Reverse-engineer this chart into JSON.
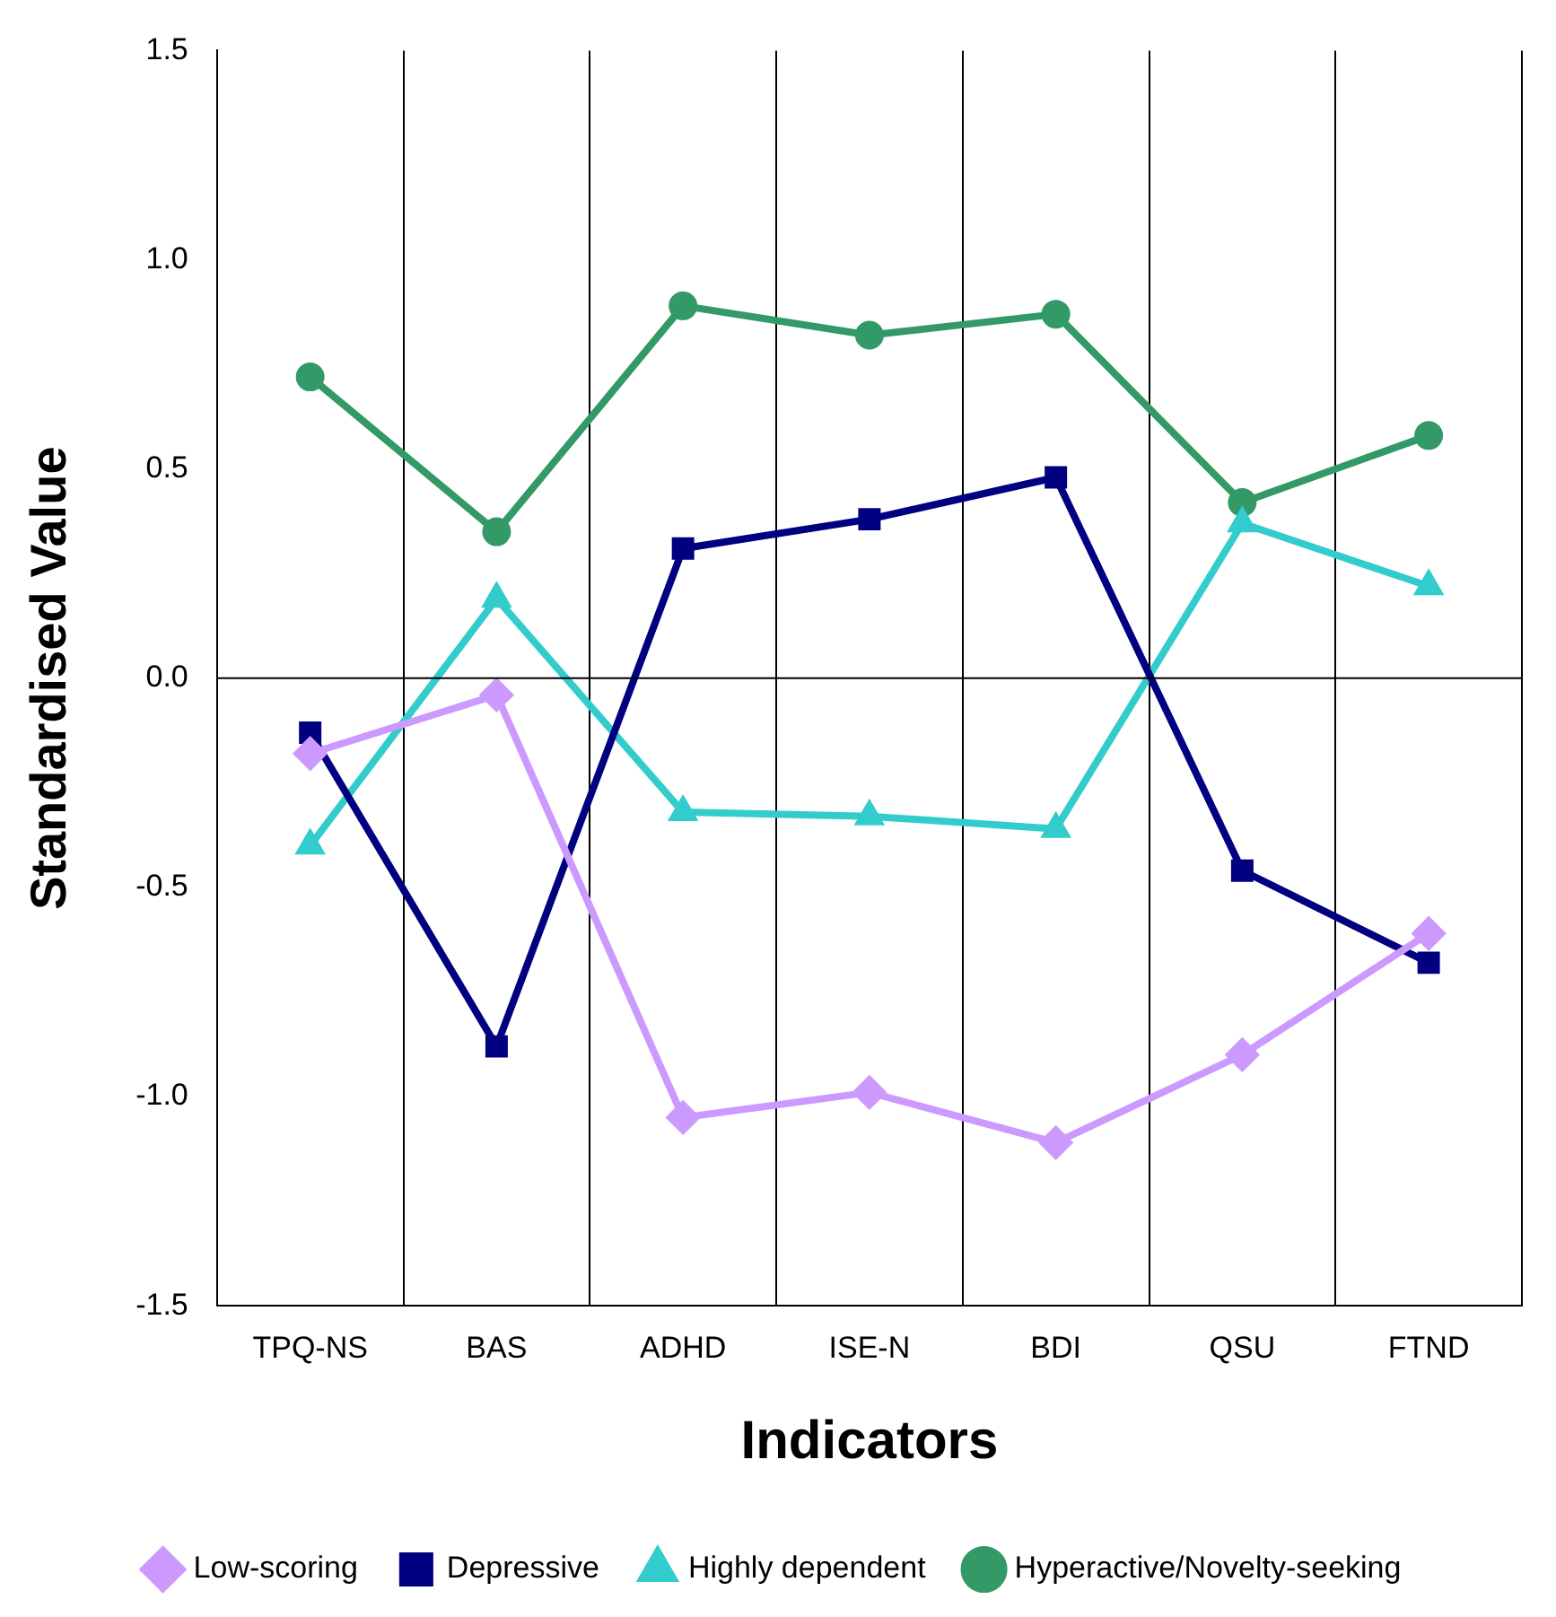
{
  "chart_data": {
    "type": "line",
    "xlabel": "Indicators",
    "ylabel": "Standardised Value",
    "categories": [
      "TPQ-NS",
      "BAS",
      "ADHD",
      "ISE-N",
      "BDI",
      "QSU",
      "FTND"
    ],
    "ylim": [
      -1.5,
      1.5
    ],
    "yticks": [
      {
        "value": -1.5,
        "label": "-1.5"
      },
      {
        "value": -1.0,
        "label": "-1.0"
      },
      {
        "value": -0.5,
        "label": "-0.5"
      },
      {
        "value": 0,
        "label": "0.0"
      },
      {
        "value": 0.5,
        "label": "0.5"
      },
      {
        "value": 1.0,
        "label": "1.0"
      },
      {
        "value": 1.5,
        "label": "1.5"
      }
    ],
    "grid": "x",
    "legend": "bottom",
    "line_style": "solid",
    "ref_lines": [
      {
        "axis": "y",
        "value": 0,
        "color": "#000000"
      }
    ],
    "series": [
      {
        "name": "Low-scoring",
        "color": "#cc99ff",
        "marker": "diamond",
        "values": [
          -0.18,
          -0.04,
          -1.05,
          -0.99,
          -1.11,
          -0.9,
          -0.61
        ]
      },
      {
        "name": "Depressive",
        "color": "#000080",
        "marker": "square",
        "values": [
          -0.13,
          -0.88,
          0.31,
          0.38,
          0.48,
          -0.46,
          -0.68
        ]
      },
      {
        "name": "Highly dependent",
        "color": "#33cccc",
        "marker": "triangle",
        "values": [
          -0.4,
          0.19,
          -0.32,
          -0.33,
          -0.36,
          0.37,
          0.22
        ]
      },
      {
        "name": "Hyperactive/Novelty-seeking",
        "color": "#339966",
        "marker": "circle",
        "values": [
          0.72,
          0.35,
          0.89,
          0.82,
          0.87,
          0.42,
          0.58
        ]
      }
    ]
  }
}
